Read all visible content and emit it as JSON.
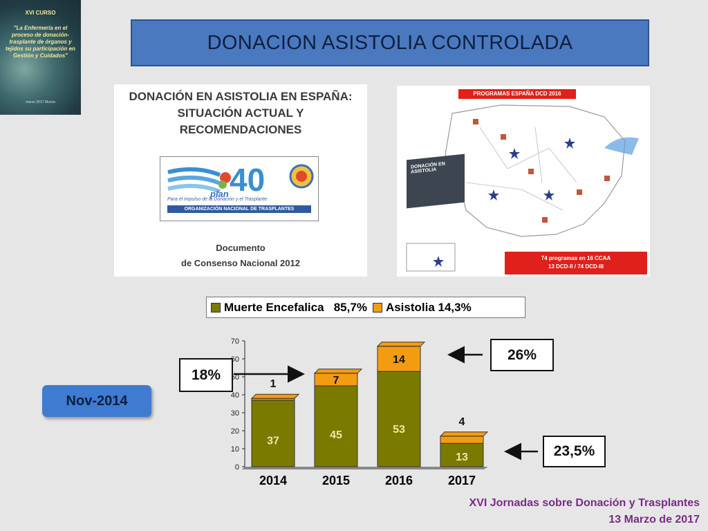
{
  "slide": {
    "title": "DONACION ASISTOLIA CONTROLADA",
    "date_badge": "Nov-2014",
    "footer_line1": "XVI Jornadas sobre Donación y Trasplantes",
    "footer_line2": "13 Marzo de 2017"
  },
  "thumbnail": {
    "heading": "XVI CURSO",
    "body": "\"La Enfermería en el proceso de donación-trasplante de órganos y tejidos su participación en Gestión y Cuidados\"",
    "footer": "marzo 2017 Murcia"
  },
  "document": {
    "title": "DONACIÓN EN ASISTOLIA EN ESPAÑA: SITUACIÓN ACTUAL Y RECOMENDACIONES",
    "logo_number": "40",
    "logo_word": "plan",
    "logo_tagline": "Para el impulso de la Donación y el Trasplante",
    "logo_org": "ORGANIZACIÓN NACIONAL DE TRASPLANTES",
    "footer_line1": "Documento",
    "footer_line2": "de Consenso Nacional 2012"
  },
  "map": {
    "header": "PROGRAMAS ESPAÑA DCD 2016",
    "book_title": "DONACIÓN EN ASISTOLIA",
    "footer_line1": "74 programas en 16 CCAA",
    "footer_line2": "13 DCD-II / 74 DCD-III"
  },
  "annotations": {
    "left_pct": "18%",
    "top_right_pct": "26%",
    "bottom_right_pct": "23,5%"
  },
  "colors": {
    "olive": "#7a7a00",
    "orange": "#f39c12",
    "banner": "#4a79c0",
    "footer_text": "#7a2a86"
  },
  "chart_data": {
    "type": "bar",
    "stacked": true,
    "categories": [
      "2014",
      "2015",
      "2016",
      "2017"
    ],
    "series": [
      {
        "name": "Muerte Encefalica   85,7%",
        "color": "#7a7a00",
        "values": [
          37,
          45,
          53,
          13
        ]
      },
      {
        "name": "Asistolia 14,3%",
        "color": "#f39c12",
        "values": [
          1,
          7,
          14,
          4
        ]
      }
    ],
    "ylim": [
      0,
      70
    ],
    "yticks": [
      0,
      10,
      20,
      30,
      40,
      50,
      60,
      70
    ],
    "legend_position": "top",
    "grid": false
  }
}
